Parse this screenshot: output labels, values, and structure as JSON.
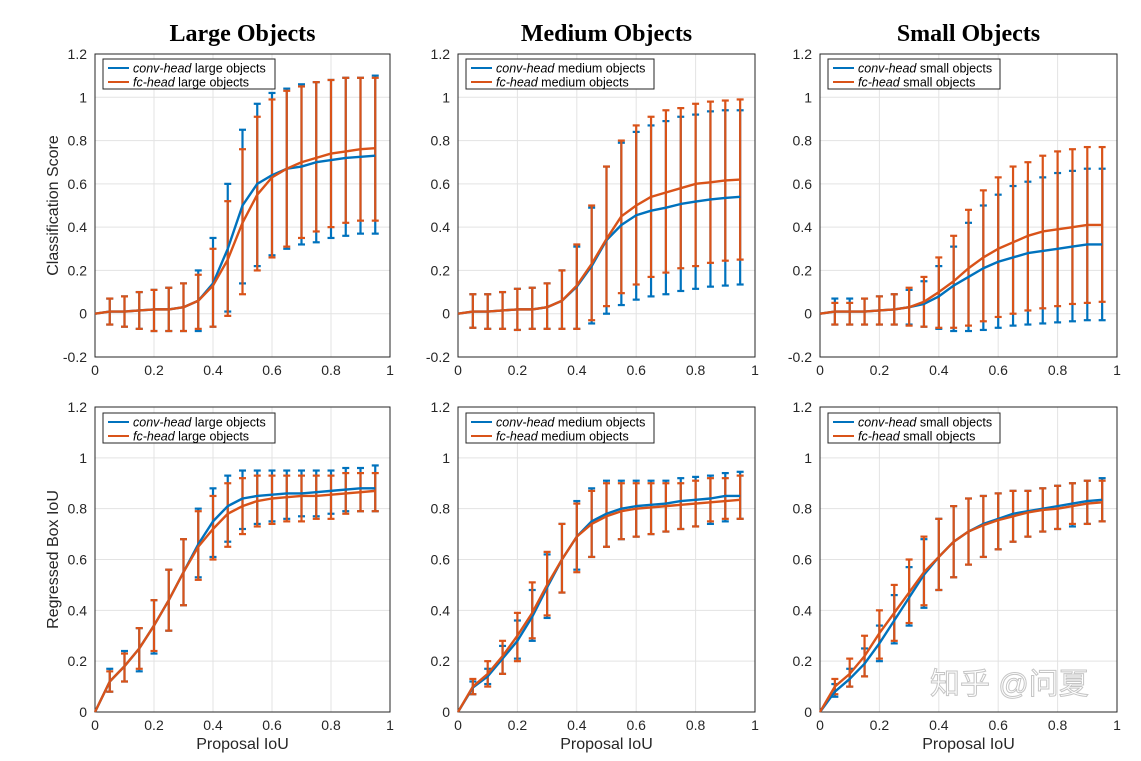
{
  "colors": {
    "conv": "#0072BD",
    "fc": "#D95319",
    "grid": "#e3e3e3"
  },
  "watermark": "知乎 @问夏",
  "chart_data": [
    {
      "type": "line",
      "title": "Large Objects",
      "ylabel": "Classification Score",
      "xlabel": "",
      "xlim": [
        0,
        1
      ],
      "ylim": [
        -0.2,
        1.2
      ],
      "grid": true,
      "legend": "top-left",
      "x": [
        0.05,
        0.1,
        0.15,
        0.2,
        0.25,
        0.3,
        0.35,
        0.4,
        0.45,
        0.5,
        0.55,
        0.6,
        0.65,
        0.7,
        0.75,
        0.8,
        0.85,
        0.9,
        0.95
      ],
      "series": [
        {
          "name_italic": "conv-head",
          "name_rest": " large objects",
          "key": "conv",
          "mean": [
            0.01,
            0.01,
            0.015,
            0.02,
            0.02,
            0.03,
            0.06,
            0.14,
            0.3,
            0.5,
            0.6,
            0.64,
            0.67,
            0.68,
            0.7,
            0.71,
            0.72,
            0.725,
            0.73
          ],
          "hi": [
            0.07,
            0.08,
            0.1,
            0.11,
            0.12,
            0.14,
            0.2,
            0.35,
            0.6,
            0.85,
            0.97,
            1.02,
            1.04,
            1.06,
            1.07,
            1.08,
            1.09,
            1.09,
            1.1
          ],
          "lo": [
            -0.05,
            -0.06,
            -0.07,
            -0.08,
            -0.08,
            -0.08,
            -0.08,
            -0.06,
            0.01,
            0.14,
            0.22,
            0.27,
            0.3,
            0.32,
            0.33,
            0.35,
            0.36,
            0.37,
            0.37
          ]
        },
        {
          "name_italic": "fc-head",
          "name_rest": " large objects",
          "key": "fc",
          "mean": [
            0.01,
            0.01,
            0.015,
            0.02,
            0.02,
            0.03,
            0.06,
            0.13,
            0.25,
            0.42,
            0.55,
            0.63,
            0.67,
            0.7,
            0.72,
            0.74,
            0.75,
            0.76,
            0.765
          ],
          "hi": [
            0.07,
            0.08,
            0.1,
            0.11,
            0.12,
            0.14,
            0.18,
            0.3,
            0.52,
            0.76,
            0.91,
            0.99,
            1.03,
            1.05,
            1.07,
            1.08,
            1.09,
            1.09,
            1.09
          ],
          "lo": [
            -0.05,
            -0.06,
            -0.07,
            -0.08,
            -0.08,
            -0.08,
            -0.07,
            -0.06,
            -0.01,
            0.09,
            0.2,
            0.26,
            0.31,
            0.35,
            0.38,
            0.4,
            0.42,
            0.43,
            0.43
          ]
        }
      ]
    },
    {
      "type": "line",
      "title": "Medium Objects",
      "ylabel": "",
      "xlabel": "",
      "xlim": [
        0,
        1
      ],
      "ylim": [
        -0.2,
        1.2
      ],
      "grid": true,
      "legend": "top-left",
      "x": [
        0.05,
        0.1,
        0.15,
        0.2,
        0.25,
        0.3,
        0.35,
        0.4,
        0.45,
        0.5,
        0.55,
        0.6,
        0.65,
        0.7,
        0.75,
        0.8,
        0.85,
        0.9,
        0.95
      ],
      "series": [
        {
          "name_italic": "conv-head",
          "name_rest": " medium objects",
          "key": "conv",
          "mean": [
            0.01,
            0.01,
            0.015,
            0.02,
            0.02,
            0.03,
            0.06,
            0.125,
            0.22,
            0.34,
            0.41,
            0.455,
            0.476,
            0.49,
            0.507,
            0.518,
            0.528,
            0.535,
            0.54
          ],
          "hi": [
            0.09,
            0.09,
            0.1,
            0.115,
            0.12,
            0.14,
            0.2,
            0.31,
            0.49,
            0.68,
            0.79,
            0.84,
            0.87,
            0.89,
            0.91,
            0.92,
            0.935,
            0.94,
            0.94
          ],
          "lo": [
            -0.065,
            -0.07,
            -0.07,
            -0.075,
            -0.07,
            -0.07,
            -0.07,
            -0.07,
            -0.045,
            0.0,
            0.04,
            0.065,
            0.08,
            0.09,
            0.105,
            0.115,
            0.125,
            0.13,
            0.135
          ]
        },
        {
          "name_italic": "fc-head",
          "name_rest": " medium objects",
          "key": "fc",
          "mean": [
            0.01,
            0.01,
            0.015,
            0.02,
            0.02,
            0.03,
            0.06,
            0.13,
            0.23,
            0.345,
            0.45,
            0.5,
            0.54,
            0.56,
            0.58,
            0.6,
            0.607,
            0.616,
            0.62
          ],
          "hi": [
            0.09,
            0.09,
            0.1,
            0.115,
            0.12,
            0.14,
            0.2,
            0.32,
            0.5,
            0.68,
            0.8,
            0.87,
            0.91,
            0.94,
            0.95,
            0.97,
            0.98,
            0.985,
            0.99
          ],
          "lo": [
            -0.065,
            -0.07,
            -0.07,
            -0.075,
            -0.07,
            -0.07,
            -0.07,
            -0.07,
            -0.03,
            0.035,
            0.095,
            0.135,
            0.17,
            0.19,
            0.21,
            0.22,
            0.235,
            0.245,
            0.25
          ]
        }
      ]
    },
    {
      "type": "line",
      "title": "Small Objects",
      "ylabel": "",
      "xlabel": "",
      "xlim": [
        0,
        1
      ],
      "ylim": [
        -0.2,
        1.2
      ],
      "grid": true,
      "legend": "top-left",
      "x": [
        0.05,
        0.1,
        0.15,
        0.2,
        0.25,
        0.3,
        0.35,
        0.4,
        0.45,
        0.5,
        0.55,
        0.6,
        0.65,
        0.7,
        0.75,
        0.8,
        0.85,
        0.9,
        0.95
      ],
      "series": [
        {
          "name_italic": "conv-head",
          "name_rest": " small objects",
          "key": "conv",
          "mean": [
            0.01,
            0.01,
            0.01,
            0.015,
            0.02,
            0.03,
            0.045,
            0.08,
            0.13,
            0.17,
            0.21,
            0.24,
            0.26,
            0.28,
            0.29,
            0.3,
            0.31,
            0.32,
            0.32
          ],
          "hi": [
            0.07,
            0.07,
            0.07,
            0.08,
            0.09,
            0.11,
            0.15,
            0.22,
            0.31,
            0.42,
            0.5,
            0.55,
            0.59,
            0.61,
            0.63,
            0.65,
            0.66,
            0.67,
            0.67
          ],
          "lo": [
            -0.05,
            -0.05,
            -0.05,
            -0.05,
            -0.05,
            -0.05,
            -0.06,
            -0.07,
            -0.08,
            -0.08,
            -0.075,
            -0.065,
            -0.055,
            -0.05,
            -0.045,
            -0.04,
            -0.035,
            -0.03,
            -0.03
          ]
        },
        {
          "name_italic": "fc-head",
          "name_rest": " small objects",
          "key": "fc",
          "mean": [
            0.01,
            0.01,
            0.01,
            0.015,
            0.02,
            0.03,
            0.055,
            0.1,
            0.15,
            0.21,
            0.26,
            0.3,
            0.33,
            0.36,
            0.38,
            0.39,
            0.4,
            0.41,
            0.41
          ],
          "hi": [
            0.05,
            0.05,
            0.07,
            0.08,
            0.09,
            0.12,
            0.17,
            0.26,
            0.36,
            0.48,
            0.57,
            0.63,
            0.68,
            0.7,
            0.73,
            0.75,
            0.76,
            0.77,
            0.77
          ],
          "lo": [
            -0.05,
            -0.05,
            -0.05,
            -0.05,
            -0.05,
            -0.055,
            -0.06,
            -0.065,
            -0.065,
            -0.055,
            -0.035,
            -0.015,
            0.0,
            0.015,
            0.025,
            0.035,
            0.045,
            0.05,
            0.055
          ]
        }
      ]
    },
    {
      "type": "line",
      "title": "",
      "ylabel": "Regressed Box IoU",
      "xlabel": "Proposal IoU",
      "xlim": [
        0,
        1
      ],
      "ylim": [
        0,
        1.2
      ],
      "grid": true,
      "legend": "top-left",
      "x": [
        0.05,
        0.1,
        0.15,
        0.2,
        0.25,
        0.3,
        0.35,
        0.4,
        0.45,
        0.5,
        0.55,
        0.6,
        0.65,
        0.7,
        0.75,
        0.8,
        0.85,
        0.9,
        0.95
      ],
      "series": [
        {
          "name_italic": "conv-head",
          "name_rest": " large objects",
          "key": "conv",
          "mean": [
            0.12,
            0.18,
            0.25,
            0.34,
            0.44,
            0.55,
            0.66,
            0.75,
            0.81,
            0.84,
            0.85,
            0.855,
            0.86,
            0.86,
            0.865,
            0.87,
            0.875,
            0.88,
            0.88
          ],
          "hi": [
            0.17,
            0.24,
            0.33,
            0.44,
            0.56,
            0.68,
            0.8,
            0.88,
            0.93,
            0.95,
            0.95,
            0.95,
            0.95,
            0.95,
            0.95,
            0.95,
            0.96,
            0.96,
            0.97
          ],
          "lo": [
            0.08,
            0.12,
            0.16,
            0.23,
            0.32,
            0.42,
            0.53,
            0.61,
            0.67,
            0.72,
            0.74,
            0.75,
            0.76,
            0.77,
            0.77,
            0.78,
            0.79,
            0.79,
            0.79
          ]
        },
        {
          "name_italic": "fc-head",
          "name_rest": " large objects",
          "key": "fc",
          "mean": [
            0.12,
            0.18,
            0.25,
            0.34,
            0.44,
            0.55,
            0.65,
            0.72,
            0.78,
            0.81,
            0.83,
            0.84,
            0.845,
            0.85,
            0.85,
            0.855,
            0.86,
            0.865,
            0.87
          ],
          "hi": [
            0.16,
            0.23,
            0.33,
            0.44,
            0.56,
            0.68,
            0.79,
            0.85,
            0.9,
            0.92,
            0.93,
            0.93,
            0.93,
            0.93,
            0.93,
            0.93,
            0.94,
            0.94,
            0.94
          ],
          "lo": [
            0.08,
            0.12,
            0.17,
            0.24,
            0.32,
            0.42,
            0.52,
            0.6,
            0.65,
            0.7,
            0.73,
            0.74,
            0.75,
            0.75,
            0.76,
            0.76,
            0.78,
            0.79,
            0.79
          ]
        }
      ]
    },
    {
      "type": "line",
      "title": "",
      "ylabel": "",
      "xlabel": "Proposal IoU",
      "xlim": [
        0,
        1
      ],
      "ylim": [
        0,
        1.2
      ],
      "grid": true,
      "legend": "top-left",
      "x": [
        0.05,
        0.1,
        0.15,
        0.2,
        0.25,
        0.3,
        0.35,
        0.4,
        0.45,
        0.5,
        0.55,
        0.6,
        0.65,
        0.7,
        0.75,
        0.8,
        0.85,
        0.9,
        0.95
      ],
      "series": [
        {
          "name_italic": "conv-head",
          "name_rest": " medium objects",
          "key": "conv",
          "mean": [
            0.096,
            0.14,
            0.21,
            0.28,
            0.375,
            0.49,
            0.6,
            0.69,
            0.75,
            0.78,
            0.8,
            0.81,
            0.815,
            0.82,
            0.83,
            0.835,
            0.84,
            0.85,
            0.85
          ],
          "hi": [
            0.12,
            0.17,
            0.26,
            0.36,
            0.48,
            0.62,
            0.74,
            0.83,
            0.88,
            0.91,
            0.91,
            0.91,
            0.91,
            0.91,
            0.92,
            0.925,
            0.93,
            0.94,
            0.945
          ],
          "lo": [
            0.07,
            0.11,
            0.15,
            0.21,
            0.28,
            0.37,
            0.47,
            0.56,
            0.61,
            0.65,
            0.68,
            0.69,
            0.7,
            0.71,
            0.72,
            0.73,
            0.74,
            0.75,
            0.76
          ]
        },
        {
          "name_italic": "fc-head",
          "name_rest": " medium objects",
          "key": "fc",
          "mean": [
            0.1,
            0.15,
            0.22,
            0.3,
            0.39,
            0.5,
            0.6,
            0.69,
            0.74,
            0.77,
            0.79,
            0.8,
            0.805,
            0.81,
            0.815,
            0.82,
            0.825,
            0.83,
            0.835
          ],
          "hi": [
            0.13,
            0.2,
            0.28,
            0.39,
            0.51,
            0.63,
            0.74,
            0.82,
            0.87,
            0.9,
            0.9,
            0.9,
            0.9,
            0.9,
            0.9,
            0.91,
            0.92,
            0.92,
            0.93
          ],
          "lo": [
            0.07,
            0.1,
            0.15,
            0.2,
            0.29,
            0.38,
            0.47,
            0.55,
            0.61,
            0.65,
            0.68,
            0.69,
            0.7,
            0.71,
            0.72,
            0.73,
            0.75,
            0.76,
            0.76
          ]
        }
      ]
    },
    {
      "type": "line",
      "title": "",
      "ylabel": "",
      "xlabel": "Proposal IoU",
      "xlim": [
        0,
        1
      ],
      "ylim": [
        0,
        1.2
      ],
      "grid": true,
      "legend": "top-left",
      "x": [
        0.05,
        0.1,
        0.15,
        0.2,
        0.25,
        0.3,
        0.35,
        0.4,
        0.45,
        0.5,
        0.55,
        0.6,
        0.65,
        0.7,
        0.75,
        0.8,
        0.85,
        0.9,
        0.95
      ],
      "series": [
        {
          "name_italic": "conv-head",
          "name_rest": " small objects",
          "key": "conv",
          "mean": [
            0.08,
            0.13,
            0.19,
            0.27,
            0.36,
            0.45,
            0.54,
            0.61,
            0.67,
            0.71,
            0.74,
            0.76,
            0.78,
            0.79,
            0.8,
            0.81,
            0.82,
            0.83,
            0.835
          ],
          "hi": [
            0.11,
            0.17,
            0.25,
            0.34,
            0.46,
            0.57,
            0.68,
            0.76,
            0.81,
            0.84,
            0.85,
            0.86,
            0.87,
            0.87,
            0.88,
            0.89,
            0.9,
            0.91,
            0.92
          ],
          "lo": [
            0.06,
            0.1,
            0.14,
            0.2,
            0.27,
            0.34,
            0.41,
            0.48,
            0.53,
            0.58,
            0.61,
            0.64,
            0.67,
            0.69,
            0.71,
            0.72,
            0.73,
            0.74,
            0.75
          ]
        },
        {
          "name_italic": "fc-head",
          "name_rest": " small objects",
          "key": "fc",
          "mean": [
            0.1,
            0.15,
            0.22,
            0.31,
            0.39,
            0.47,
            0.55,
            0.61,
            0.67,
            0.71,
            0.735,
            0.755,
            0.77,
            0.785,
            0.795,
            0.8,
            0.81,
            0.82,
            0.825
          ],
          "hi": [
            0.13,
            0.21,
            0.3,
            0.4,
            0.5,
            0.6,
            0.69,
            0.76,
            0.81,
            0.84,
            0.85,
            0.86,
            0.87,
            0.87,
            0.88,
            0.89,
            0.9,
            0.91,
            0.91
          ],
          "lo": [
            0.07,
            0.1,
            0.14,
            0.21,
            0.28,
            0.35,
            0.42,
            0.48,
            0.53,
            0.58,
            0.61,
            0.64,
            0.67,
            0.69,
            0.71,
            0.72,
            0.74,
            0.74,
            0.75
          ]
        }
      ]
    }
  ]
}
